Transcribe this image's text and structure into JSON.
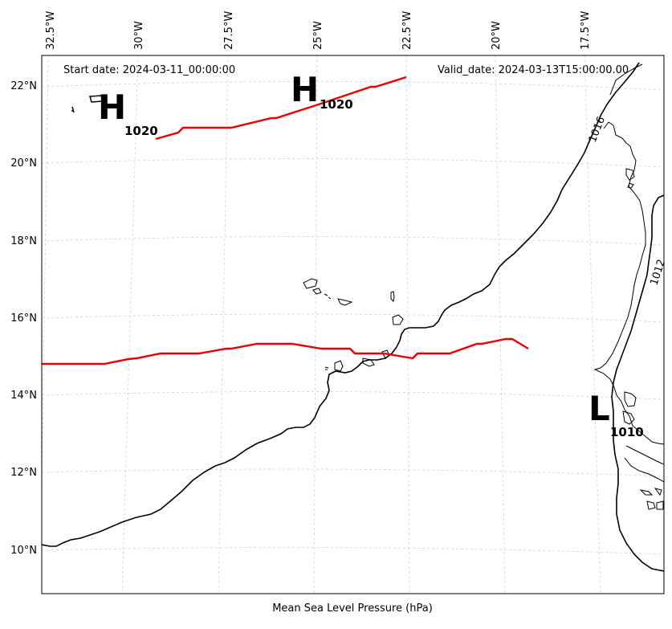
{
  "map": {
    "start_date": "Start date: 2024-03-11_00:00:00",
    "valid_date": "Valid_date: 2024-03-13T15:00:00.00",
    "caption": "Mean Sea Level Pressure (hPa)",
    "lon_ticks": [
      "32.5°W",
      "30°W",
      "27.5°W",
      "25°W",
      "22.5°W",
      "20°W",
      "17.5°W"
    ],
    "lat_ticks": [
      "22°N",
      "20°N",
      "18°N",
      "16°N",
      "14°N",
      "12°N",
      "10°N"
    ],
    "pressure_systems": [
      {
        "type": "H",
        "value": "1020"
      },
      {
        "type": "H",
        "value": "1020"
      },
      {
        "type": "L",
        "value": "1010"
      }
    ],
    "isobar_labels": [
      "1016",
      "1012"
    ],
    "colors": {
      "ridge_line": "#ee0000",
      "isobar": "#000000",
      "grid": "#cccccc"
    }
  }
}
